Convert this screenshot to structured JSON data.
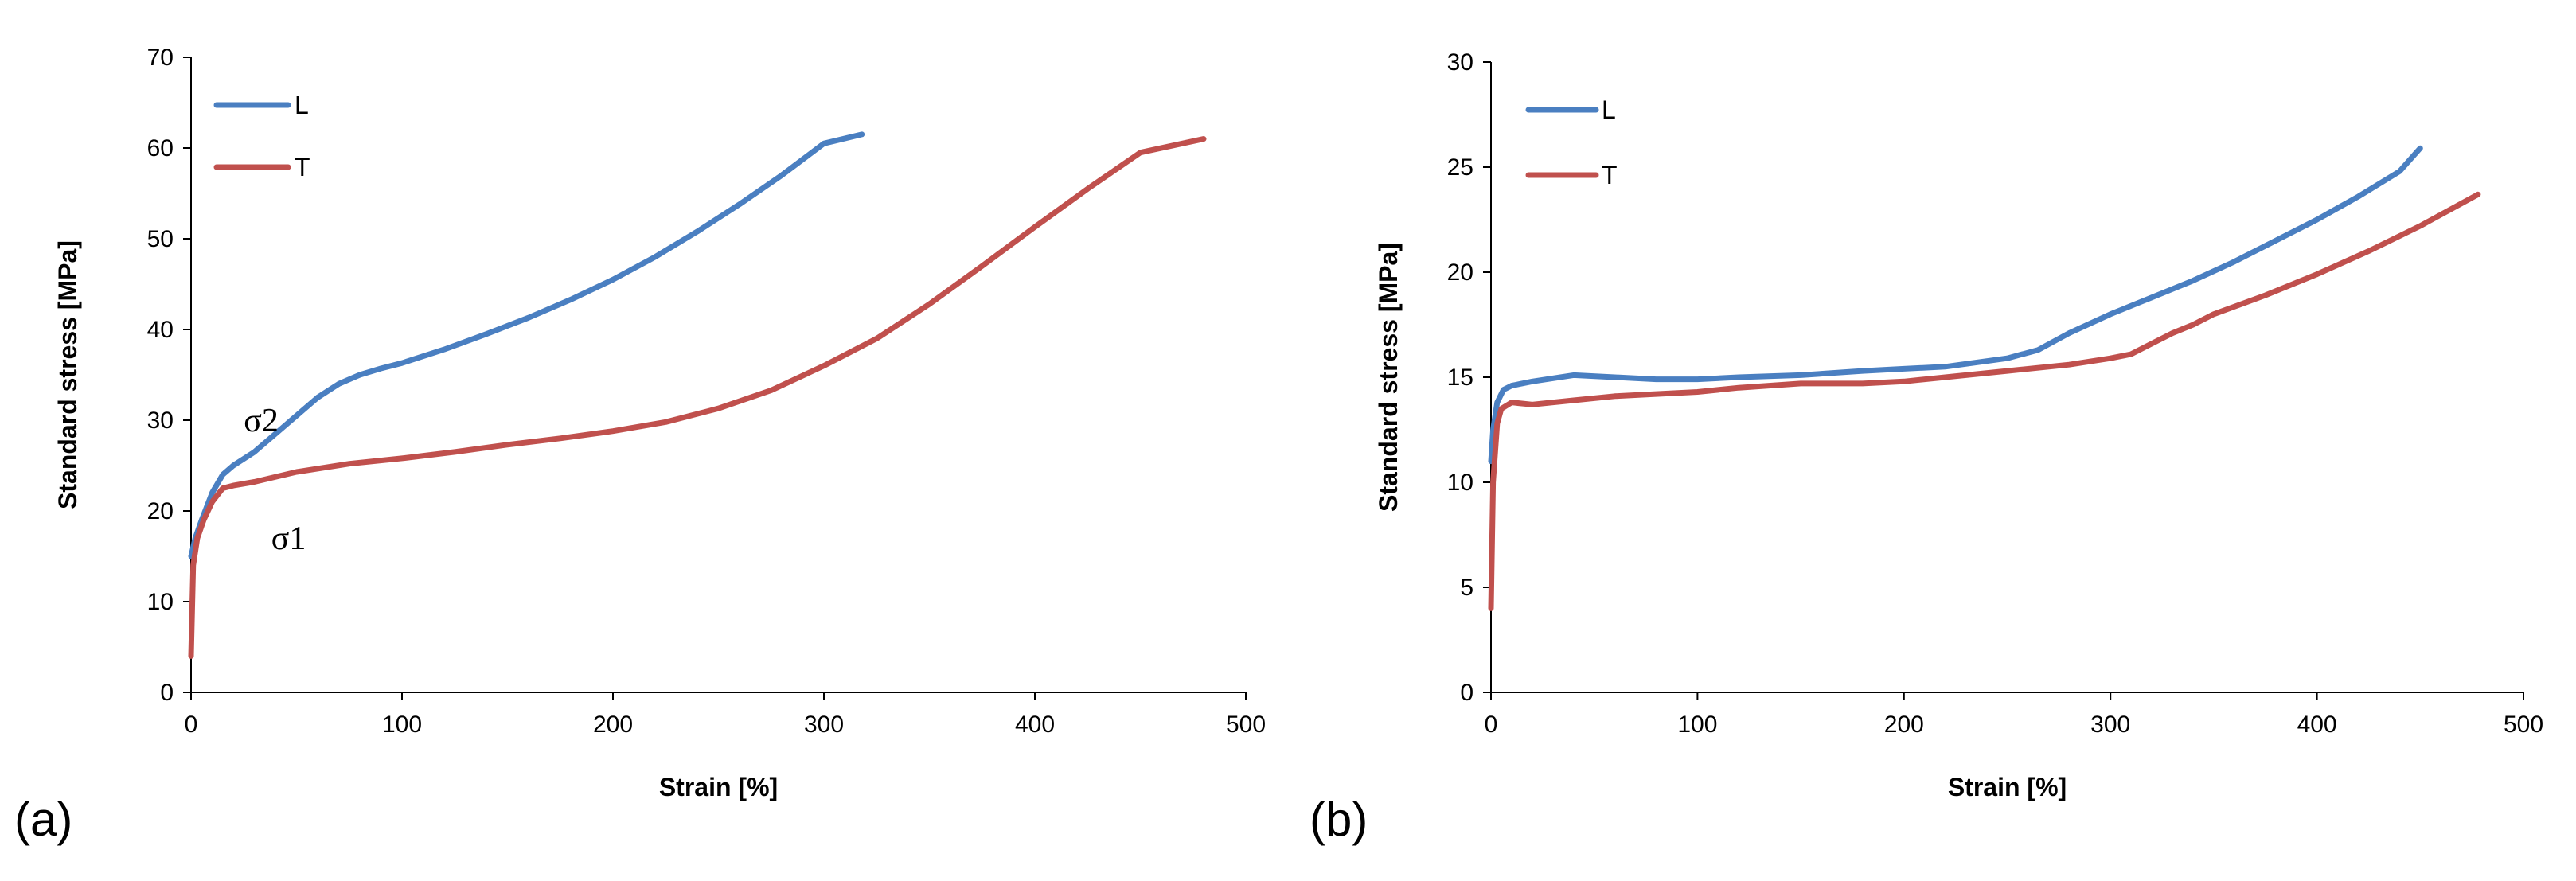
{
  "chart_data": [
    {
      "type": "line",
      "panel_label": "(a)",
      "xlabel": "Strain [%]",
      "ylabel": "Standard stress [MPa]",
      "xlim": [
        0,
        500
      ],
      "ylim": [
        0,
        70
      ],
      "xticks": [
        0,
        100,
        200,
        300,
        400,
        500
      ],
      "yticks": [
        0,
        10,
        20,
        30,
        40,
        50,
        60,
        70
      ],
      "grid": false,
      "legend_position": "top-left",
      "series": [
        {
          "name": "L",
          "color": "#4a7fc1",
          "x": [
            0,
            2,
            5,
            10,
            15,
            20,
            30,
            40,
            50,
            60,
            70,
            80,
            90,
            100,
            120,
            140,
            160,
            180,
            200,
            220,
            240,
            260,
            280,
            300,
            318
          ],
          "y": [
            15,
            17,
            19,
            22,
            24,
            25,
            26.5,
            28.5,
            30.5,
            32.5,
            34,
            35,
            35.7,
            36.3,
            37.8,
            39.5,
            41.3,
            43.3,
            45.5,
            48,
            50.8,
            53.8,
            57,
            60.5,
            61.5
          ]
        },
        {
          "name": "T",
          "color": "#c0504d",
          "x": [
            0,
            1,
            3,
            6,
            10,
            15,
            20,
            30,
            50,
            75,
            100,
            125,
            150,
            175,
            200,
            225,
            250,
            275,
            300,
            325,
            350,
            375,
            400,
            425,
            450,
            480
          ],
          "y": [
            4,
            14,
            17,
            19,
            21,
            22.5,
            22.8,
            23.2,
            24.3,
            25.2,
            25.8,
            26.5,
            27.3,
            28,
            28.8,
            29.8,
            31.3,
            33.3,
            36,
            39,
            42.8,
            47,
            51.3,
            55.5,
            59.5,
            61
          ]
        }
      ],
      "annotations": [
        {
          "text": "σ2",
          "x": 25,
          "y": 30
        },
        {
          "text": "σ1",
          "x": 38,
          "y": 17
        }
      ]
    },
    {
      "type": "line",
      "panel_label": "(b)",
      "xlabel": "Strain [%]",
      "ylabel": "Standard stress [MPa]",
      "xlim": [
        0,
        500
      ],
      "ylim": [
        0,
        30
      ],
      "xticks": [
        0,
        100,
        200,
        300,
        400,
        500
      ],
      "yticks": [
        0,
        5,
        10,
        15,
        20,
        25,
        30
      ],
      "grid": false,
      "legend_position": "top-left",
      "series": [
        {
          "name": "L",
          "color": "#4a7fc1",
          "x": [
            0,
            1,
            3,
            6,
            10,
            20,
            40,
            60,
            80,
            100,
            120,
            150,
            180,
            200,
            220,
            250,
            265,
            280,
            300,
            320,
            340,
            360,
            380,
            400,
            420,
            440,
            450
          ],
          "y": [
            11,
            12.5,
            13.8,
            14.4,
            14.6,
            14.8,
            15.1,
            15.0,
            14.9,
            14.9,
            15.0,
            15.1,
            15.3,
            15.4,
            15.5,
            15.9,
            16.3,
            17.1,
            18.0,
            18.8,
            19.6,
            20.5,
            21.5,
            22.5,
            23.6,
            24.8,
            25.9
          ]
        },
        {
          "name": "T",
          "color": "#c0504d",
          "x": [
            0,
            1,
            3,
            5,
            10,
            20,
            40,
            60,
            80,
            100,
            120,
            150,
            180,
            200,
            220,
            250,
            280,
            300,
            310,
            320,
            330,
            340,
            350,
            375,
            400,
            425,
            450,
            478
          ],
          "y": [
            4,
            10,
            12.8,
            13.5,
            13.8,
            13.7,
            13.9,
            14.1,
            14.2,
            14.3,
            14.5,
            14.7,
            14.7,
            14.8,
            15.0,
            15.3,
            15.6,
            15.9,
            16.1,
            16.6,
            17.1,
            17.5,
            18.0,
            18.9,
            19.9,
            21.0,
            22.2,
            23.7
          ]
        }
      ],
      "annotations": []
    }
  ]
}
